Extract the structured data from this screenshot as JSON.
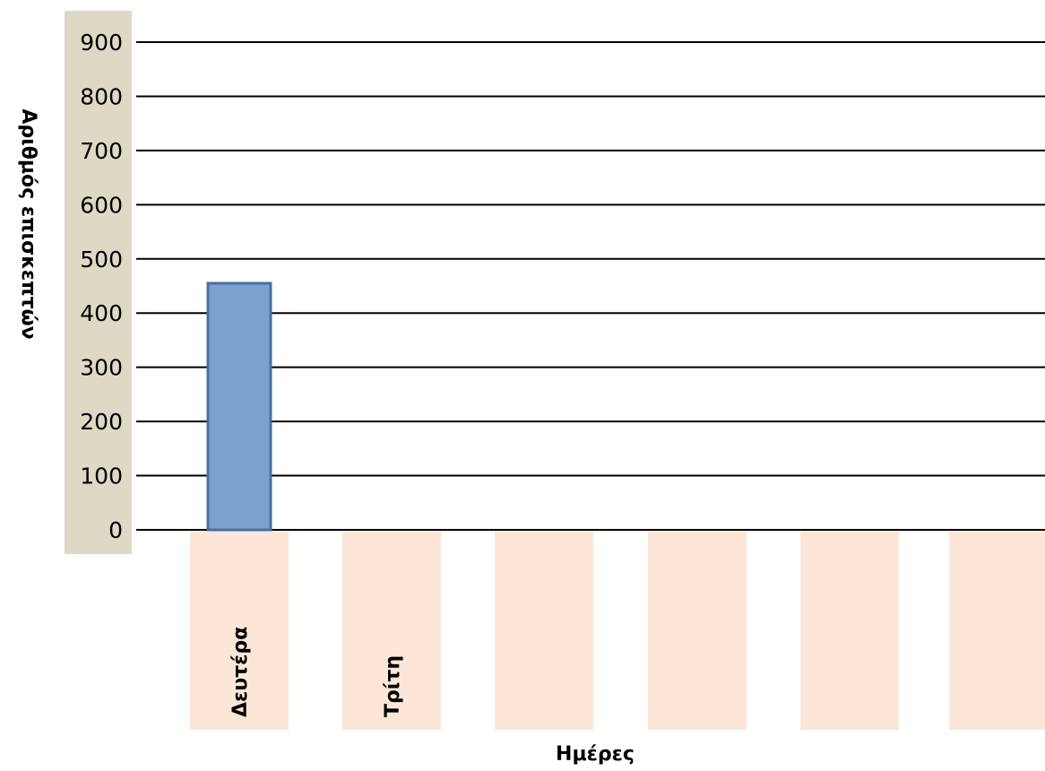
{
  "chart_data": {
    "type": "bar",
    "categories": [
      "Δευτέρα",
      "Τρίτη",
      "",
      "",
      "",
      ""
    ],
    "values": [
      455,
      null,
      null,
      null,
      null,
      null
    ],
    "xlabel": "Ημέρες",
    "ylabel": "Αριθμός επισκεπτών",
    "ylim": [
      0,
      900
    ],
    "yticks": [
      0,
      100,
      200,
      300,
      400,
      500,
      600,
      700,
      800,
      900
    ],
    "grid": true,
    "legend": "none"
  },
  "colors": {
    "bar_fill": "#7ba1d1",
    "bar_stroke": "#4a6f9e",
    "y_axis_band": "#ddd9c4",
    "category_band": "#fbe6d8",
    "grid_line": "#000000"
  }
}
